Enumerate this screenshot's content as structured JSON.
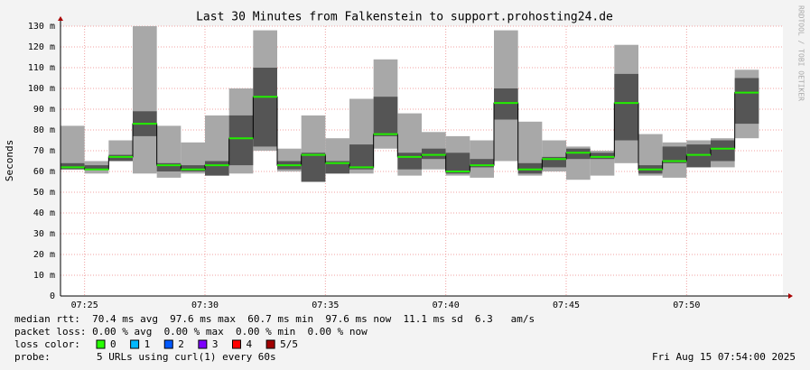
{
  "chart_data": {
    "type": "smoke",
    "title": "Last 30 Minutes from Falkenstein to support.prohosting24.de",
    "y_label": "Seconds",
    "side_label": "RRDTOOL / TOBI OETIKER",
    "xlim": [
      24,
      54
    ],
    "xticks": [
      {
        "value": 25,
        "label": "07:25"
      },
      {
        "value": 30,
        "label": "07:30"
      },
      {
        "value": 35,
        "label": "07:35"
      },
      {
        "value": 40,
        "label": "07:40"
      },
      {
        "value": 45,
        "label": "07:45"
      },
      {
        "value": 50,
        "label": "07:50"
      }
    ],
    "ylim": [
      0,
      130
    ],
    "yticks": [
      0,
      {
        "value": 10,
        "label": "10 m"
      },
      {
        "value": 20,
        "label": "20 m"
      },
      {
        "value": 30,
        "label": "30 m"
      },
      {
        "value": 40,
        "label": "40 m"
      },
      {
        "value": 50,
        "label": "50 m"
      },
      {
        "value": 60,
        "label": "60 m"
      },
      {
        "value": 70,
        "label": "70 m"
      },
      {
        "value": 80,
        "label": "80 m"
      },
      {
        "value": 90,
        "label": "90 m"
      },
      {
        "value": 100,
        "label": "100 m"
      },
      {
        "value": 110,
        "label": "110 m"
      },
      {
        "value": 120,
        "label": "120 m"
      },
      {
        "value": 130,
        "label": "130 m"
      }
    ],
    "grid": true,
    "x": [
      24,
      25,
      26,
      27,
      28,
      29,
      30,
      31,
      32,
      33,
      34,
      35,
      36,
      37,
      38,
      39,
      40,
      41,
      42,
      43,
      44,
      45,
      46,
      47,
      48,
      49,
      50,
      51,
      52
    ],
    "smoke_high": [
      82,
      65,
      75,
      130,
      82,
      74,
      87,
      100,
      128,
      71,
      87,
      76,
      95,
      114,
      88,
      79,
      77,
      75,
      128,
      84,
      75,
      72,
      70,
      121,
      78,
      74,
      75,
      76,
      109
    ],
    "smoke_low": [
      61,
      59,
      65,
      59,
      57,
      59,
      58,
      59,
      70,
      60,
      55,
      59,
      59,
      71,
      58,
      61,
      58,
      57,
      65,
      58,
      60,
      56,
      58,
      64,
      58,
      57,
      62,
      62,
      76
    ],
    "dark_high": [
      64,
      63,
      68,
      89,
      64,
      63,
      65,
      87,
      110,
      65,
      69,
      65,
      73,
      96,
      69,
      71,
      69,
      66,
      100,
      64,
      67,
      71,
      69,
      107,
      63,
      72,
      73,
      75,
      105
    ],
    "dark_low": [
      61,
      61,
      65,
      77,
      60,
      60,
      58,
      63,
      72,
      61,
      55,
      59,
      61,
      77,
      61,
      66,
      59,
      62,
      85,
      59,
      62,
      66,
      66,
      75,
      59,
      64,
      62,
      65,
      83
    ],
    "median": [
      62,
      61,
      67,
      83,
      63,
      61,
      63,
      76,
      96,
      63,
      68,
      64,
      62,
      78,
      67,
      68,
      60,
      63,
      93,
      61,
      66,
      69,
      67,
      93,
      61,
      65,
      68,
      71,
      98
    ],
    "smoke_color": "#a8a8a8",
    "dark_color": "#555555",
    "median_color": "#22ee00",
    "stats": [
      "median rtt:  70.4 ms avg  97.6 ms max  60.7 ms min  97.6 ms now  11.1 ms sd  6.3   am/s",
      "packet loss: 0.00 % avg  0.00 % max  0.00 % min  0.00 % now"
    ],
    "loss_label": "loss color:",
    "loss_colors": [
      {
        "label": "0",
        "color": "#26ff00"
      },
      {
        "label": "1",
        "color": "#00b8ff"
      },
      {
        "label": "2",
        "color": "#0059ff"
      },
      {
        "label": "3",
        "color": "#7e00ff"
      },
      {
        "label": "4",
        "color": "#ff0000"
      },
      {
        "label": "5/5",
        "color": "#a10000"
      }
    ],
    "probe_label": "probe:",
    "probe": "5 URLs using curl(1) every 60s",
    "timestamp": "Fri Aug 15 07:54:00 2025"
  }
}
